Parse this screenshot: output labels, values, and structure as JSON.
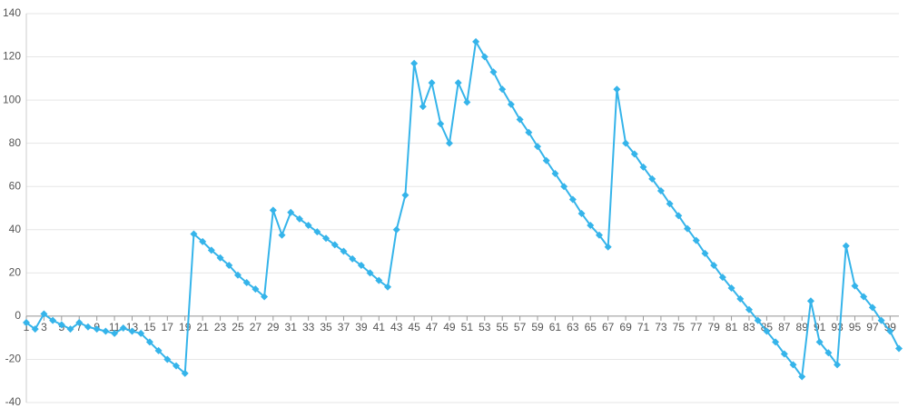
{
  "chart_data": {
    "type": "line",
    "x": [
      1,
      2,
      3,
      4,
      5,
      6,
      7,
      8,
      9,
      10,
      11,
      12,
      13,
      14,
      15,
      16,
      17,
      18,
      19,
      20,
      21,
      22,
      23,
      24,
      25,
      26,
      27,
      28,
      29,
      30,
      31,
      32,
      33,
      34,
      35,
      36,
      37,
      38,
      39,
      40,
      41,
      42,
      43,
      44,
      45,
      46,
      47,
      48,
      49,
      50,
      51,
      52,
      53,
      54,
      55,
      56,
      57,
      58,
      59,
      60,
      61,
      62,
      63,
      64,
      65,
      66,
      67,
      68,
      69,
      70,
      71,
      72,
      73,
      74,
      75,
      76,
      77,
      78,
      79,
      80,
      81,
      82,
      83,
      84,
      85,
      86,
      87,
      88,
      89,
      90,
      91,
      92,
      93,
      94,
      95,
      96,
      97,
      98,
      99,
      100
    ],
    "series": [
      {
        "color": "#35b4ea",
        "values": [
          -3,
          -6,
          1,
          -2,
          -4,
          -6,
          -3,
          -5,
          -6,
          -7,
          -8,
          -5.5,
          -7,
          -8,
          -12,
          -16,
          -20,
          -23,
          -26.5,
          38,
          34.5,
          30.5,
          27,
          23.5,
          19,
          15.5,
          12.5,
          9,
          49,
          37.5,
          48,
          45,
          42,
          39,
          36,
          33,
          30,
          26.5,
          23.5,
          20,
          16.5,
          13.5,
          40,
          56,
          117,
          97,
          108,
          89,
          80,
          108,
          99,
          127,
          120,
          113,
          105,
          98,
          91,
          85,
          78.5,
          72,
          66,
          60,
          54,
          47.5,
          42,
          37.5,
          32,
          105,
          80,
          75,
          69,
          63.5,
          58,
          52,
          46.5,
          40.5,
          35,
          29,
          23.5,
          18,
          13,
          8,
          3,
          -2,
          -7,
          -12,
          -17.5,
          -22.5,
          -28,
          7,
          -12,
          -17,
          -22.5,
          32.5,
          14,
          9,
          4,
          -2,
          -7,
          -15
        ]
      }
    ],
    "xlim": [
      1,
      100
    ],
    "xticks": [
      1,
      3,
      5,
      7,
      9,
      11,
      13,
      15,
      17,
      19,
      21,
      23,
      25,
      27,
      29,
      31,
      33,
      35,
      37,
      39,
      41,
      43,
      45,
      47,
      49,
      51,
      53,
      55,
      57,
      59,
      61,
      63,
      65,
      67,
      69,
      71,
      73,
      75,
      77,
      79,
      81,
      83,
      85,
      87,
      89,
      91,
      93,
      95,
      97,
      99
    ],
    "ylim": [
      -40,
      140
    ],
    "yticks": [
      -40,
      -20,
      0,
      20,
      40,
      60,
      80,
      100,
      120,
      140
    ],
    "grid": true
  }
}
